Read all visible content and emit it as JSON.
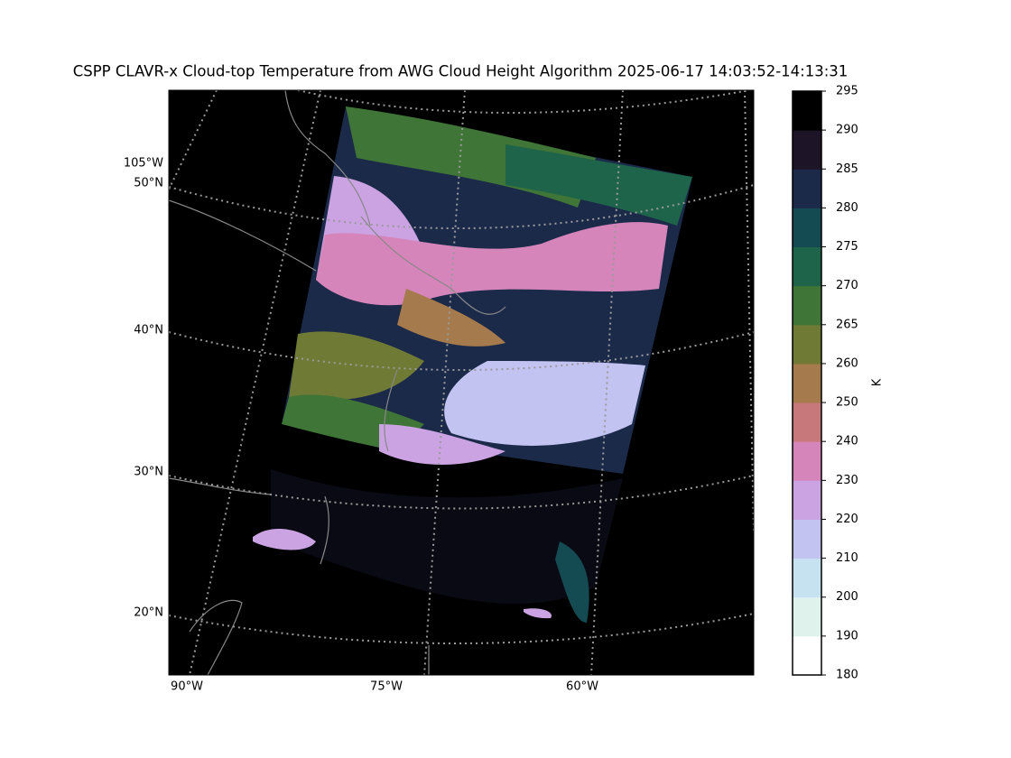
{
  "title": "CSPP CLAVR-x Cloud-top Temperature from AWG Cloud Height Algorithm 2025-06-17 14:03:52-14:13:31",
  "map": {
    "lat_labels": [
      "50°N",
      "40°N",
      "30°N",
      "20°N"
    ],
    "lon_labels_left": [
      "105°W"
    ],
    "lon_labels_bottom": [
      "90°W",
      "75°W",
      "60°W"
    ]
  },
  "colorbar": {
    "label": "K",
    "ticks": [
      180,
      190,
      200,
      210,
      220,
      230,
      240,
      250,
      260,
      265,
      270,
      275,
      280,
      285,
      290,
      295
    ],
    "colors": [
      "#ffffff",
      "#dff3ec",
      "#c6e2f0",
      "#c3c3f2",
      "#cba3e2",
      "#d685bb",
      "#c7787a",
      "#a57a4c",
      "#6f7a35",
      "#3f7536",
      "#1e644a",
      "#144a52",
      "#1c2a4a",
      "#1e1428",
      "#000000"
    ]
  }
}
